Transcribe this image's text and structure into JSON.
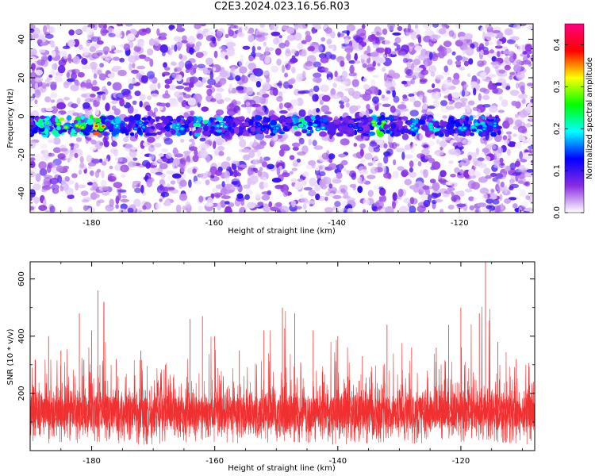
{
  "title": "C2E3.2024.023.16.56.R03",
  "chart_data": [
    {
      "type": "heatmap",
      "xlabel": "Height of straight line (km)",
      "ylabel": "Frequency (Hz)",
      "xlim": [
        -190,
        -108
      ],
      "ylim": [
        -50,
        48
      ],
      "xticks": [
        "-180",
        "-160",
        "-140",
        "-120"
      ],
      "yticks": [
        "40",
        "20",
        "0",
        "-20",
        "-40"
      ],
      "xtick_values": [
        -180,
        -160,
        -140,
        -120
      ],
      "ytick_values": [
        40,
        20,
        0,
        -20,
        -40
      ],
      "colorbar": {
        "label": "Normalized spectral amplitude",
        "range": [
          0,
          0.45
        ],
        "ticks": [
          "0.0",
          "0.1",
          "0.2",
          "0.3",
          "0.4"
        ],
        "tick_values": [
          0.0,
          0.1,
          0.2,
          0.3,
          0.4
        ],
        "colors": [
          "#ffffff",
          "#8a2be2",
          "#0000ff",
          "#00ffff",
          "#00ff00",
          "#ffff00",
          "#ff0000",
          "#ff0080"
        ]
      },
      "signal_band": {
        "center_frequency": -5,
        "strong_regions": [
          {
            "x": -188,
            "amplitude": 0.25
          },
          {
            "x": -185,
            "amplitude": 0.3
          },
          {
            "x": -182,
            "amplitude": 0.32
          },
          {
            "x": -179,
            "amplitude": 0.38
          },
          {
            "x": -176,
            "amplitude": 0.2
          },
          {
            "x": -172,
            "amplitude": 0.18
          },
          {
            "x": -166,
            "amplitude": 0.2
          },
          {
            "x": -162,
            "amplitude": 0.25
          },
          {
            "x": -159,
            "amplitude": 0.2
          },
          {
            "x": -153,
            "amplitude": 0.15
          },
          {
            "x": -150,
            "amplitude": 0.18
          },
          {
            "x": -146,
            "amplitude": 0.25
          },
          {
            "x": -143,
            "amplitude": 0.2
          },
          {
            "x": -137,
            "amplitude": 0.15
          },
          {
            "x": -133,
            "amplitude": 0.3
          },
          {
            "x": -127,
            "amplitude": 0.2
          },
          {
            "x": -124,
            "amplitude": 0.22
          },
          {
            "x": -120,
            "amplitude": 0.2
          },
          {
            "x": -117,
            "amplitude": 0.22
          },
          {
            "x": -115,
            "amplitude": 0.18
          }
        ]
      }
    },
    {
      "type": "line",
      "xlabel": "Height of straight line (km)",
      "ylabel": "SNR (10 * v/v)",
      "xlim": [
        -190,
        -108
      ],
      "ylim": [
        0,
        660
      ],
      "xticks": [
        "-180",
        "-160",
        "-140",
        "-120"
      ],
      "yticks": [
        "200",
        "400",
        "600"
      ],
      "xtick_values": [
        -180,
        -160,
        -140,
        -120
      ],
      "ytick_values": [
        200,
        400,
        600
      ],
      "color": "#f03030",
      "series_envelope": [
        {
          "x": -190,
          "min": 20,
          "max": 300
        },
        {
          "x": -187,
          "min": 25,
          "max": 400
        },
        {
          "x": -185,
          "min": 30,
          "max": 350
        },
        {
          "x": -182,
          "min": 25,
          "max": 480
        },
        {
          "x": -180,
          "min": 35,
          "max": 420
        },
        {
          "x": -179,
          "min": 30,
          "max": 560
        },
        {
          "x": -178,
          "min": 35,
          "max": 520
        },
        {
          "x": -176,
          "min": 25,
          "max": 320
        },
        {
          "x": -172,
          "min": 20,
          "max": 350
        },
        {
          "x": -168,
          "min": 25,
          "max": 300
        },
        {
          "x": -164,
          "min": 30,
          "max": 460
        },
        {
          "x": -162,
          "min": 35,
          "max": 470
        },
        {
          "x": -160,
          "min": 30,
          "max": 400
        },
        {
          "x": -156,
          "min": 25,
          "max": 350
        },
        {
          "x": -152,
          "min": 25,
          "max": 420
        },
        {
          "x": -149,
          "min": 35,
          "max": 500
        },
        {
          "x": -147,
          "min": 30,
          "max": 480
        },
        {
          "x": -144,
          "min": 25,
          "max": 420
        },
        {
          "x": -140,
          "min": 20,
          "max": 400
        },
        {
          "x": -136,
          "min": 25,
          "max": 330
        },
        {
          "x": -132,
          "min": 30,
          "max": 440
        },
        {
          "x": -128,
          "min": 25,
          "max": 360
        },
        {
          "x": -124,
          "min": 25,
          "max": 360
        },
        {
          "x": -122,
          "min": 30,
          "max": 440
        },
        {
          "x": -120,
          "min": 30,
          "max": 500
        },
        {
          "x": -117,
          "min": 35,
          "max": 480
        },
        {
          "x": -116,
          "min": 40,
          "max": 660
        },
        {
          "x": -114,
          "min": 30,
          "max": 380
        },
        {
          "x": -111,
          "min": 25,
          "max": 320
        },
        {
          "x": -108,
          "min": 20,
          "max": 300
        }
      ]
    }
  ]
}
